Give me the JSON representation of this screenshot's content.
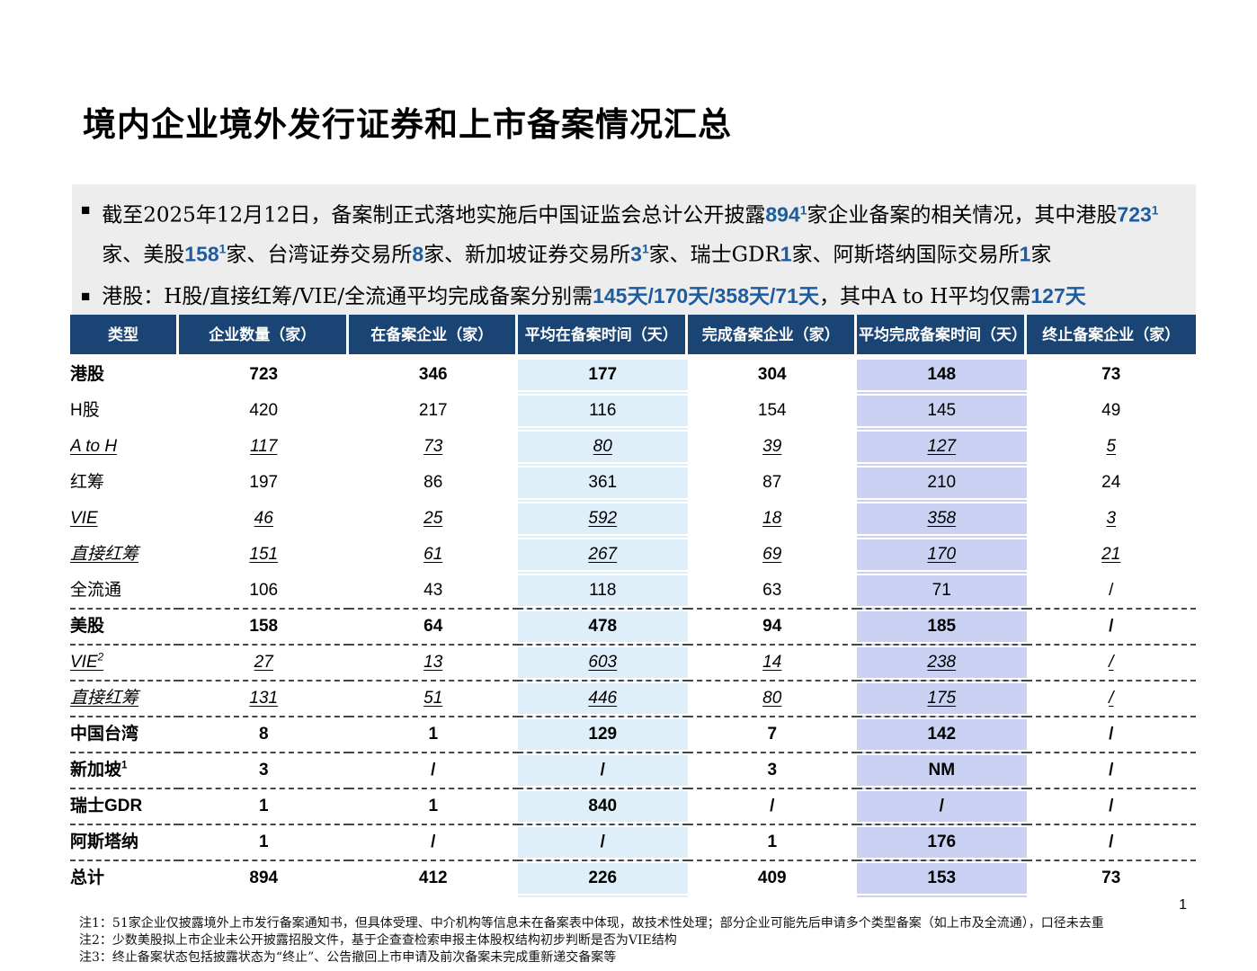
{
  "title": "境内企业境外发行证券和上市备案情况汇总",
  "page_number": "1",
  "colors": {
    "header_bg": "#1A4473",
    "highlight_blue": "#DEEFF9",
    "highlight_lavender": "#CBD1F2",
    "accent_text": "#1E5C9E",
    "summary_box_bg": "#EDEDED"
  },
  "summary_bullets": [
    {
      "segments": [
        {
          "t": "截至2025年12月12日，备案制正式落地实施后中国证监会总计公开披露",
          "s": "n"
        },
        {
          "t": "894",
          "s": "a"
        },
        {
          "t": "1",
          "s": "as"
        },
        {
          "t": "家企业备案的相关情况，其中港股",
          "s": "n"
        },
        {
          "t": "723",
          "s": "a"
        },
        {
          "t": "1",
          "s": "as"
        },
        {
          "t": "家、美股",
          "s": "n"
        },
        {
          "t": "158",
          "s": "a"
        },
        {
          "t": "1",
          "s": "as"
        },
        {
          "t": "家、台湾证券交易所",
          "s": "n"
        },
        {
          "t": "8",
          "s": "a"
        },
        {
          "t": "家、新加坡证券交易所",
          "s": "n"
        },
        {
          "t": "3",
          "s": "a"
        },
        {
          "t": "1",
          "s": "as"
        },
        {
          "t": "家、瑞士GDR",
          "s": "n"
        },
        {
          "t": "1",
          "s": "a"
        },
        {
          "t": "家、阿斯塔纳国际交易所",
          "s": "n"
        },
        {
          "t": "1",
          "s": "a"
        },
        {
          "t": "家",
          "s": "n"
        }
      ]
    },
    {
      "segments": [
        {
          "t": "港股：H股/直接红筹/VIE/全流通平均完成备案分别需",
          "s": "n"
        },
        {
          "t": "145天/170天/358天/71天",
          "s": "a"
        },
        {
          "t": "，其中A to H平均仅需",
          "s": "n"
        },
        {
          "t": "127天",
          "s": "a"
        }
      ]
    }
  ],
  "table": {
    "headers": [
      "类型",
      "企业数量（家）",
      "在备案企业（家）",
      "平均在备案时间（天）",
      "完成备案企业（家）",
      "平均完成备案时间（天）",
      "终止备案企业（家）"
    ],
    "rows": [
      {
        "label": "港股",
        "sup": "",
        "style": "bold",
        "indent": 0,
        "dashed": false,
        "values": [
          "723",
          "346",
          "177",
          "304",
          "148",
          "73"
        ]
      },
      {
        "label": "H股",
        "sup": "",
        "style": "normal",
        "indent": 1,
        "dashed": false,
        "values": [
          "420",
          "217",
          "116",
          "154",
          "145",
          "49"
        ]
      },
      {
        "label": "A to H",
        "sup": "",
        "style": "italic",
        "indent": 2,
        "dashed": false,
        "values": [
          "117",
          "73",
          "80",
          "39",
          "127",
          "5"
        ]
      },
      {
        "label": "红筹",
        "sup": "",
        "style": "normal",
        "indent": 1,
        "dashed": false,
        "values": [
          "197",
          "86",
          "361",
          "87",
          "210",
          "24"
        ]
      },
      {
        "label": "VIE",
        "sup": "",
        "style": "italic",
        "indent": 2,
        "dashed": false,
        "values": [
          "46",
          "25",
          "592",
          "18",
          "358",
          "3"
        ]
      },
      {
        "label": "直接红筹",
        "sup": "",
        "style": "italic",
        "indent": 3,
        "dashed": false,
        "values": [
          "151",
          "61",
          "267",
          "69",
          "170",
          "21"
        ]
      },
      {
        "label": "全流通",
        "sup": "",
        "style": "normal",
        "indent": 1,
        "dashed": true,
        "values": [
          "106",
          "43",
          "118",
          "63",
          "71",
          "/"
        ]
      },
      {
        "label": "美股",
        "sup": "",
        "style": "bold",
        "indent": 0,
        "dashed": true,
        "values": [
          "158",
          "64",
          "478",
          "94",
          "185",
          "/"
        ]
      },
      {
        "label": "VIE",
        "sup": "2",
        "style": "italic",
        "indent": 2,
        "dashed": true,
        "values": [
          "27",
          "13",
          "603",
          "14",
          "238",
          "/"
        ]
      },
      {
        "label": "直接红筹",
        "sup": "",
        "style": "italic",
        "indent": 3,
        "dashed": true,
        "values": [
          "131",
          "51",
          "446",
          "80",
          "175",
          "/"
        ]
      },
      {
        "label": "中国台湾",
        "sup": "",
        "style": "bold",
        "indent": 0,
        "dashed": true,
        "values": [
          "8",
          "1",
          "129",
          "7",
          "142",
          "/"
        ]
      },
      {
        "label": "新加坡",
        "sup": "1",
        "style": "bold",
        "indent": 0,
        "dashed": true,
        "values": [
          "3",
          "/",
          "/",
          "3",
          "NM",
          "/"
        ]
      },
      {
        "label": "瑞士GDR",
        "sup": "",
        "style": "bold",
        "indent": 0,
        "dashed": true,
        "values": [
          "1",
          "1",
          "840",
          "/",
          "/",
          "/"
        ]
      },
      {
        "label": "阿斯塔纳",
        "sup": "",
        "style": "bold",
        "indent": 0,
        "dashed": true,
        "values": [
          "1",
          "/",
          "/",
          "1",
          "176",
          "/"
        ]
      },
      {
        "label": "总计",
        "sup": "",
        "style": "bold",
        "indent": 0,
        "dashed": false,
        "values": [
          "894",
          "412",
          "226",
          "409",
          "153",
          "73"
        ]
      }
    ]
  },
  "footnotes": [
    "注1：51家企业仅披露境外上市发行备案通知书，但具体受理、中介机构等信息未在备案表中体现，故技术性处理；部分企业可能先后申请多个类型备案（如上市及全流通），口径未去重",
    "注2：少数美股拟上市企业未公开披露招股文件，基于企查查检索申报主体股权结构初步判断是否为VIE结构",
    "注3：终止备案状态包括披露状态为“终止”、公告撤回上市申请及前次备案未完成重新递交备案等"
  ]
}
